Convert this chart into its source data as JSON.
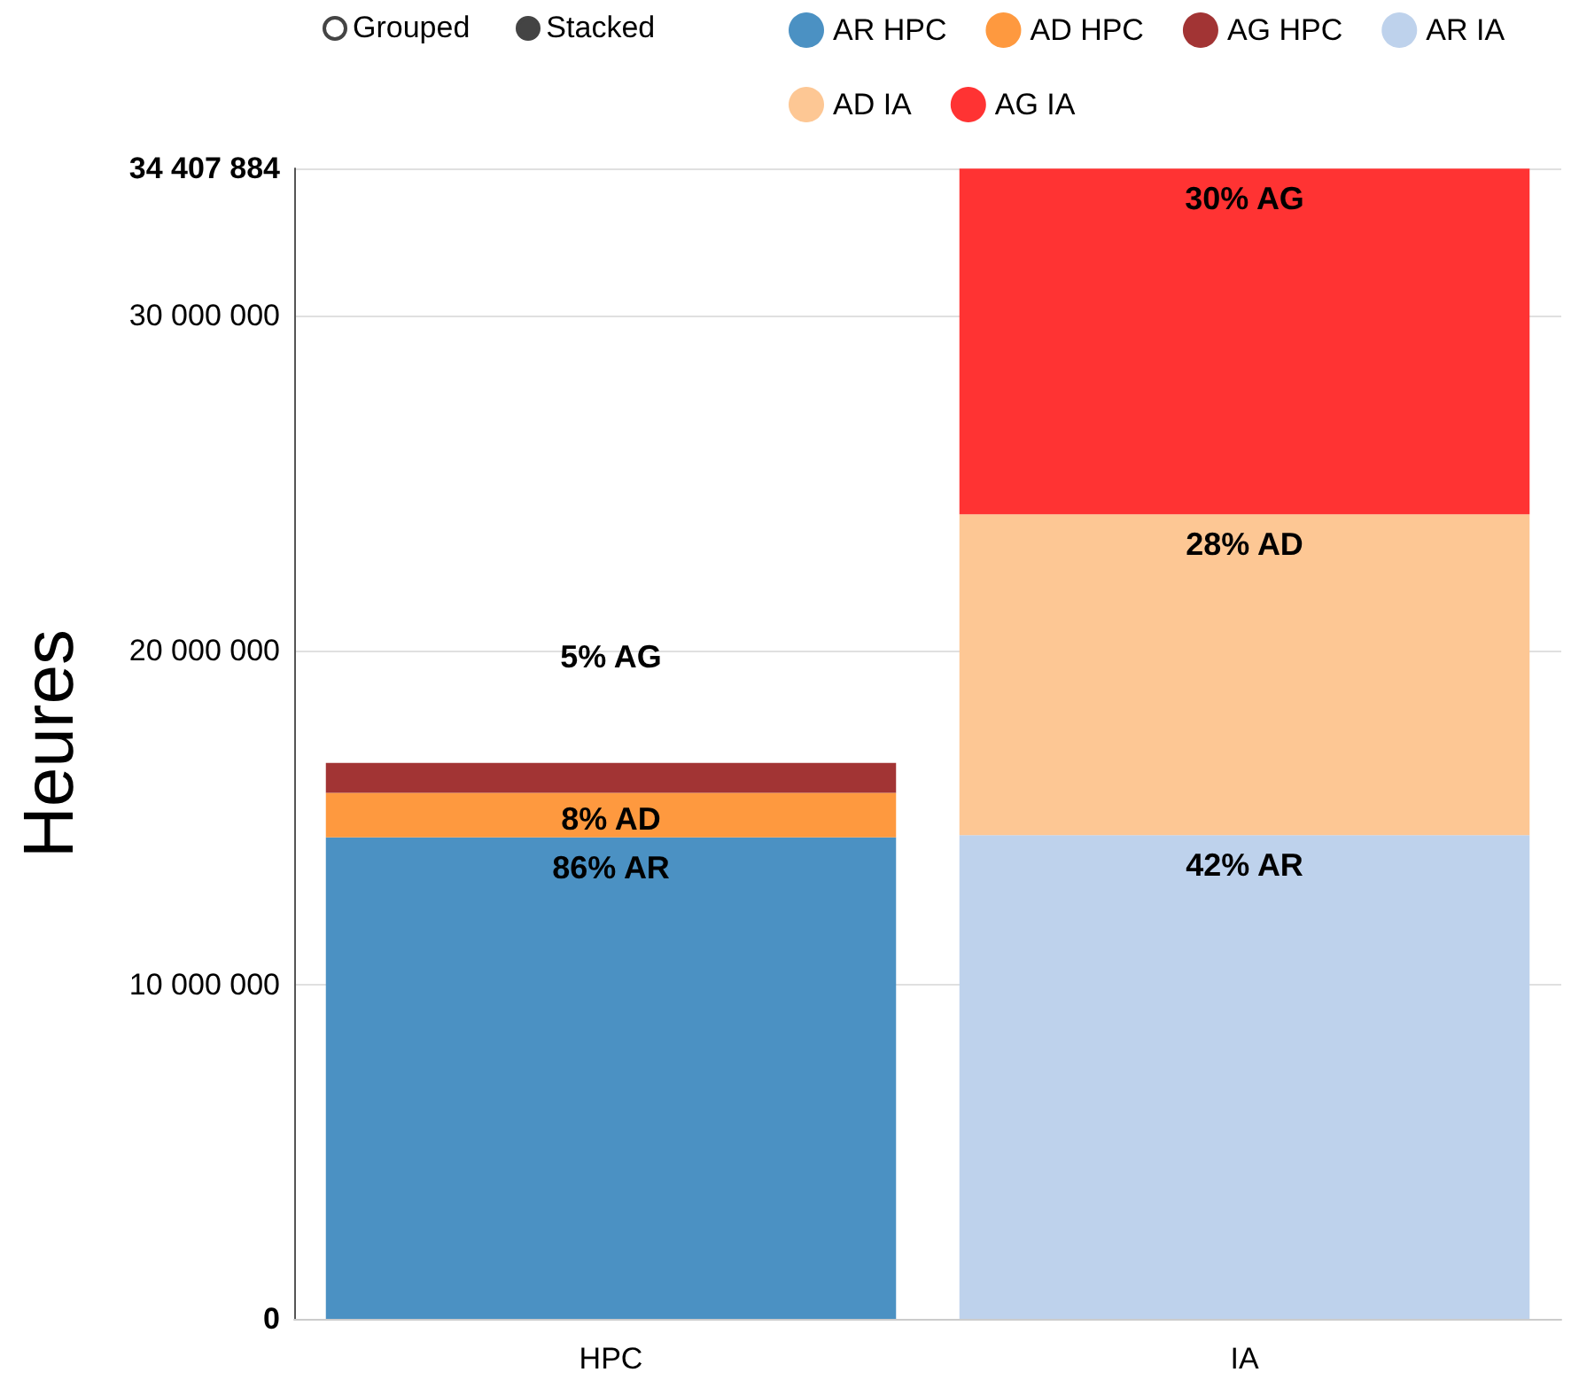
{
  "chart_data": {
    "type": "bar",
    "stacked": true,
    "ylabel": "Heures",
    "categories": [
      "HPC",
      "IA"
    ],
    "series": [
      {
        "name": "AR HPC",
        "color": "#4b91c3",
        "values": [
          14400000,
          null
        ]
      },
      {
        "name": "AD HPC",
        "color": "#fe993f",
        "values": [
          1330000,
          null
        ]
      },
      {
        "name": "AG HPC",
        "color": "#a23434",
        "values": [
          900000,
          null
        ]
      },
      {
        "name": "AR IA",
        "color": "#bed2ec",
        "values": [
          null,
          14470000
        ]
      },
      {
        "name": "AD IA",
        "color": "#fdc794",
        "values": [
          null,
          9590000
        ]
      },
      {
        "name": "AG IA",
        "color": "#ff3333",
        "values": [
          null,
          10340000
        ]
      }
    ],
    "ylim": [
      0,
      34407884
    ],
    "yticks": [
      {
        "value": 0,
        "label": "0"
      },
      {
        "value": 10000000,
        "label": "10 000 000"
      },
      {
        "value": 20000000,
        "label": "20 000 000"
      },
      {
        "value": 30000000,
        "label": "30 000 000"
      },
      {
        "value": 34407884,
        "label": "34 407 884"
      }
    ],
    "grid": "y",
    "legend": "top",
    "annotations": [
      "Grouped",
      "Stacked",
      "86% AR",
      "8% AD",
      "5% AG",
      "42% AR",
      "28% AD",
      "30% AG"
    ]
  }
}
